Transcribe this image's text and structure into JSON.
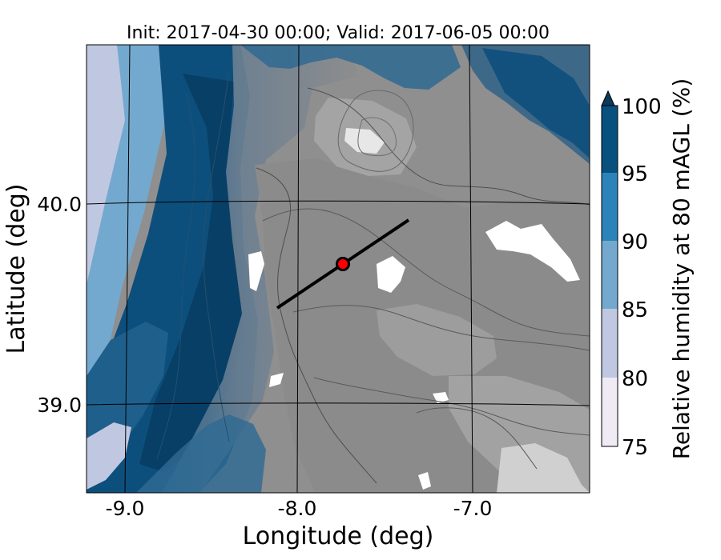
{
  "title": "Init: 2017-04-30 00:00; Valid: 2017-06-05 00:00",
  "axes": {
    "xlabel": "Longitude (deg)",
    "ylabel": "Latitude (deg)",
    "x_ticks": [
      "-9.0",
      "-8.0",
      "-7.0"
    ],
    "y_ticks": [
      "40.0",
      "39.0"
    ]
  },
  "colorbar": {
    "label": "Relative humidity at 80 mAGL (%)",
    "ticks": [
      "100",
      "95",
      "90",
      "85",
      "80",
      "75"
    ],
    "levels": [
      75,
      80,
      85,
      90,
      95,
      100
    ],
    "colors": [
      "#efeaf4",
      "#bfc8e0",
      "#74a9cf",
      "#2b83ba",
      "#08507e"
    ],
    "extend": "max",
    "extend_color": "#0b3a5c"
  },
  "map": {
    "land_below_threshold_color": "#8f8f8f",
    "grid_lines": true
  },
  "chart_data": {
    "type": "heatmap",
    "title": "Init: 2017-04-30 00:00; Valid: 2017-06-05 00:00",
    "xlabel": "Longitude (deg)",
    "ylabel": "Latitude (deg)",
    "xlim": [
      -9.25,
      -6.35
    ],
    "ylim": [
      38.45,
      40.75
    ],
    "color_levels": [
      75,
      80,
      85,
      90,
      95,
      100
    ],
    "colorbar_label": "Relative humidity at 80 mAGL (%)",
    "transect": {
      "start": [
        -8.12,
        39.48
      ],
      "end": [
        -7.37,
        39.92
      ]
    },
    "site": {
      "lon": -7.75,
      "lat": 39.69
    }
  }
}
